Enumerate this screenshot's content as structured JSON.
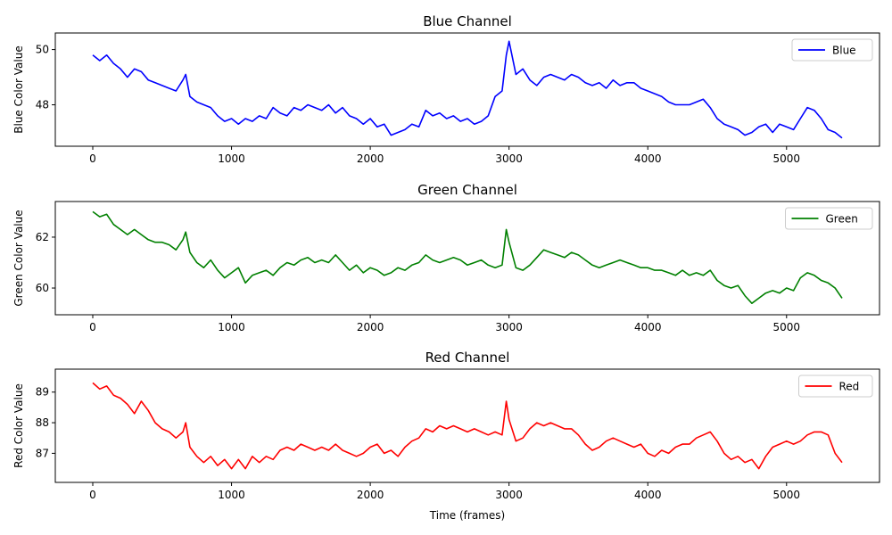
{
  "chart_data": [
    {
      "type": "line",
      "title": "Blue Channel",
      "xlabel": "",
      "ylabel": "Blue Color Value",
      "xlim": [
        -270,
        5670
      ],
      "ylim": [
        46.5,
        50.6
      ],
      "xticks": [
        0,
        1000,
        2000,
        3000,
        4000,
        5000
      ],
      "yticks": [
        48,
        50
      ],
      "legend_position": "top-right",
      "grid": false,
      "series": [
        {
          "name": "Blue",
          "color": "#0000ff",
          "x": [
            0,
            50,
            100,
            150,
            200,
            250,
            300,
            350,
            400,
            450,
            500,
            550,
            600,
            650,
            670,
            700,
            750,
            800,
            850,
            900,
            950,
            1000,
            1050,
            1100,
            1150,
            1200,
            1250,
            1300,
            1350,
            1400,
            1450,
            1500,
            1550,
            1600,
            1650,
            1700,
            1750,
            1800,
            1850,
            1900,
            1950,
            2000,
            2050,
            2100,
            2150,
            2200,
            2250,
            2300,
            2350,
            2400,
            2450,
            2500,
            2550,
            2600,
            2650,
            2700,
            2750,
            2800,
            2850,
            2900,
            2950,
            2980,
            3000,
            3050,
            3100,
            3150,
            3200,
            3250,
            3300,
            3350,
            3400,
            3450,
            3500,
            3550,
            3600,
            3650,
            3700,
            3750,
            3800,
            3850,
            3900,
            3950,
            4000,
            4050,
            4100,
            4150,
            4200,
            4250,
            4300,
            4350,
            4400,
            4450,
            4500,
            4550,
            4600,
            4650,
            4700,
            4750,
            4800,
            4850,
            4900,
            4950,
            5000,
            5050,
            5100,
            5150,
            5200,
            5250,
            5300,
            5350,
            5400
          ],
          "y": [
            49.8,
            49.6,
            49.8,
            49.5,
            49.3,
            49.0,
            49.3,
            49.2,
            48.9,
            48.8,
            48.7,
            48.6,
            48.5,
            48.9,
            49.1,
            48.3,
            48.1,
            48.0,
            47.9,
            47.6,
            47.4,
            47.5,
            47.3,
            47.5,
            47.4,
            47.6,
            47.5,
            47.9,
            47.7,
            47.6,
            47.9,
            47.8,
            48.0,
            47.9,
            47.8,
            48.0,
            47.7,
            47.9,
            47.6,
            47.5,
            47.3,
            47.5,
            47.2,
            47.3,
            46.9,
            47.0,
            47.1,
            47.3,
            47.2,
            47.8,
            47.6,
            47.7,
            47.5,
            47.6,
            47.4,
            47.5,
            47.3,
            47.4,
            47.6,
            48.3,
            48.5,
            49.8,
            50.3,
            49.1,
            49.3,
            48.9,
            48.7,
            49.0,
            49.1,
            49.0,
            48.9,
            49.1,
            49.0,
            48.8,
            48.7,
            48.8,
            48.6,
            48.9,
            48.7,
            48.8,
            48.8,
            48.6,
            48.5,
            48.4,
            48.3,
            48.1,
            48.0,
            48.0,
            48.0,
            48.1,
            48.2,
            47.9,
            47.5,
            47.3,
            47.2,
            47.1,
            46.9,
            47.0,
            47.2,
            47.3,
            47.0,
            47.3,
            47.2,
            47.1,
            47.5,
            47.9,
            47.8,
            47.5,
            47.1,
            47.0,
            46.8
          ]
        }
      ]
    },
    {
      "type": "line",
      "title": "Green Channel",
      "xlabel": "",
      "ylabel": "Green Color Value",
      "xlim": [
        -270,
        5670
      ],
      "ylim": [
        58.95,
        63.4
      ],
      "xticks": [
        0,
        1000,
        2000,
        3000,
        4000,
        5000
      ],
      "yticks": [
        60,
        62
      ],
      "legend_position": "top-right",
      "grid": false,
      "series": [
        {
          "name": "Green",
          "color": "#008000",
          "x": [
            0,
            50,
            100,
            150,
            200,
            250,
            300,
            350,
            400,
            450,
            500,
            550,
            600,
            650,
            670,
            700,
            750,
            800,
            850,
            900,
            950,
            1000,
            1050,
            1100,
            1150,
            1200,
            1250,
            1300,
            1350,
            1400,
            1450,
            1500,
            1550,
            1600,
            1650,
            1700,
            1750,
            1800,
            1850,
            1900,
            1950,
            2000,
            2050,
            2100,
            2150,
            2200,
            2250,
            2300,
            2350,
            2400,
            2450,
            2500,
            2550,
            2600,
            2650,
            2700,
            2750,
            2800,
            2850,
            2900,
            2950,
            2980,
            3000,
            3050,
            3100,
            3150,
            3200,
            3250,
            3300,
            3350,
            3400,
            3450,
            3500,
            3550,
            3600,
            3650,
            3700,
            3750,
            3800,
            3850,
            3900,
            3950,
            4000,
            4050,
            4100,
            4150,
            4200,
            4250,
            4300,
            4350,
            4400,
            4450,
            4500,
            4550,
            4600,
            4650,
            4700,
            4750,
            4800,
            4850,
            4900,
            4950,
            5000,
            5050,
            5100,
            5150,
            5200,
            5250,
            5300,
            5350,
            5400
          ],
          "y": [
            63.0,
            62.8,
            62.9,
            62.5,
            62.3,
            62.1,
            62.3,
            62.1,
            61.9,
            61.8,
            61.8,
            61.7,
            61.5,
            61.9,
            62.2,
            61.4,
            61.0,
            60.8,
            61.1,
            60.7,
            60.4,
            60.6,
            60.8,
            60.2,
            60.5,
            60.6,
            60.7,
            60.5,
            60.8,
            61.0,
            60.9,
            61.1,
            61.2,
            61.0,
            61.1,
            61.0,
            61.3,
            61.0,
            60.7,
            60.9,
            60.6,
            60.8,
            60.7,
            60.5,
            60.6,
            60.8,
            60.7,
            60.9,
            61.0,
            61.3,
            61.1,
            61.0,
            61.1,
            61.2,
            61.1,
            60.9,
            61.0,
            61.1,
            60.9,
            60.8,
            60.9,
            62.3,
            61.8,
            60.8,
            60.7,
            60.9,
            61.2,
            61.5,
            61.4,
            61.3,
            61.2,
            61.4,
            61.3,
            61.1,
            60.9,
            60.8,
            60.9,
            61.0,
            61.1,
            61.0,
            60.9,
            60.8,
            60.8,
            60.7,
            60.7,
            60.6,
            60.5,
            60.7,
            60.5,
            60.6,
            60.5,
            60.7,
            60.3,
            60.1,
            60.0,
            60.1,
            59.7,
            59.4,
            59.6,
            59.8,
            59.9,
            59.8,
            60.0,
            59.9,
            60.4,
            60.6,
            60.5,
            60.3,
            60.2,
            60.0,
            59.6
          ]
        }
      ]
    },
    {
      "type": "line",
      "title": "Red Channel",
      "xlabel": "Time (frames)",
      "ylabel": "Red Color Value",
      "xlim": [
        -270,
        5670
      ],
      "ylim": [
        86.05,
        89.75
      ],
      "xticks": [
        0,
        1000,
        2000,
        3000,
        4000,
        5000
      ],
      "yticks": [
        87,
        88,
        89
      ],
      "legend_position": "top-right",
      "grid": false,
      "series": [
        {
          "name": "Red",
          "color": "#ff0000",
          "x": [
            0,
            50,
            100,
            150,
            200,
            250,
            300,
            350,
            400,
            450,
            500,
            550,
            600,
            650,
            670,
            700,
            750,
            800,
            850,
            900,
            950,
            1000,
            1050,
            1100,
            1150,
            1200,
            1250,
            1300,
            1350,
            1400,
            1450,
            1500,
            1550,
            1600,
            1650,
            1700,
            1750,
            1800,
            1850,
            1900,
            1950,
            2000,
            2050,
            2100,
            2150,
            2200,
            2250,
            2300,
            2350,
            2400,
            2450,
            2500,
            2550,
            2600,
            2650,
            2700,
            2750,
            2800,
            2850,
            2900,
            2950,
            2980,
            3000,
            3050,
            3100,
            3150,
            3200,
            3250,
            3300,
            3350,
            3400,
            3450,
            3500,
            3550,
            3600,
            3650,
            3700,
            3750,
            3800,
            3850,
            3900,
            3950,
            4000,
            4050,
            4100,
            4150,
            4200,
            4250,
            4300,
            4350,
            4400,
            4450,
            4500,
            4550,
            4600,
            4650,
            4700,
            4750,
            4800,
            4850,
            4900,
            4950,
            5000,
            5050,
            5100,
            5150,
            5200,
            5250,
            5300,
            5350,
            5400
          ],
          "y": [
            89.3,
            89.1,
            89.2,
            88.9,
            88.8,
            88.6,
            88.3,
            88.7,
            88.4,
            88.0,
            87.8,
            87.7,
            87.5,
            87.7,
            88.0,
            87.2,
            86.9,
            86.7,
            86.9,
            86.6,
            86.8,
            86.5,
            86.8,
            86.5,
            86.9,
            86.7,
            86.9,
            86.8,
            87.1,
            87.2,
            87.1,
            87.3,
            87.2,
            87.1,
            87.2,
            87.1,
            87.3,
            87.1,
            87.0,
            86.9,
            87.0,
            87.2,
            87.3,
            87.0,
            87.1,
            86.9,
            87.2,
            87.4,
            87.5,
            87.8,
            87.7,
            87.9,
            87.8,
            87.9,
            87.8,
            87.7,
            87.8,
            87.7,
            87.6,
            87.7,
            87.6,
            88.7,
            88.1,
            87.4,
            87.5,
            87.8,
            88.0,
            87.9,
            88.0,
            87.9,
            87.8,
            87.8,
            87.6,
            87.3,
            87.1,
            87.2,
            87.4,
            87.5,
            87.4,
            87.3,
            87.2,
            87.3,
            87.0,
            86.9,
            87.1,
            87.0,
            87.2,
            87.3,
            87.3,
            87.5,
            87.6,
            87.7,
            87.4,
            87.0,
            86.8,
            86.9,
            86.7,
            86.8,
            86.5,
            86.9,
            87.2,
            87.3,
            87.4,
            87.3,
            87.4,
            87.6,
            87.7,
            87.7,
            87.6,
            87.0,
            86.7
          ]
        }
      ]
    }
  ]
}
